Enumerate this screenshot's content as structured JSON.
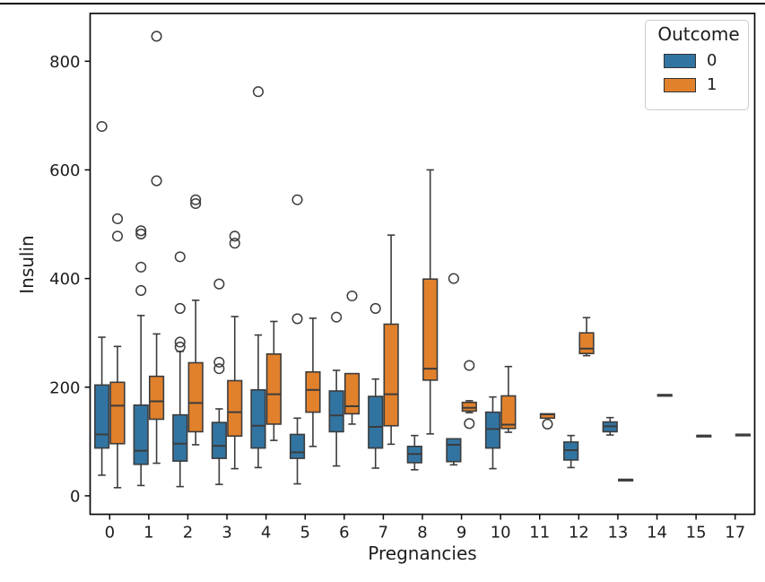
{
  "window": {
    "top_border_color": "#000000"
  },
  "chart_data": {
    "type": "grouped_boxplot",
    "title": "",
    "xlabel": "Pregnancies",
    "ylabel": "Insulin",
    "categories": [
      "0",
      "1",
      "2",
      "3",
      "4",
      "5",
      "6",
      "7",
      "8",
      "9",
      "10",
      "11",
      "12",
      "13",
      "14",
      "15",
      "17"
    ],
    "yticks": [
      0,
      200,
      400,
      600,
      800
    ],
    "ylim": [
      -34,
      888
    ],
    "grid": false,
    "background": "#ffffff",
    "axis_color": "#0a0a0a",
    "line_color": "#3c3c3c",
    "legend": {
      "title": "Outcome",
      "position": "upper right",
      "entries": [
        {
          "label": "0",
          "color": "#3274a1"
        },
        {
          "label": "1",
          "color": "#e1812c"
        }
      ]
    },
    "series": [
      {
        "name": "0",
        "color": "#3274a1",
        "boxes": [
          {
            "whislo": 38,
            "q1": 88,
            "med": 113,
            "q3": 204,
            "whishi": 292,
            "fliers": [
              680
            ]
          },
          {
            "whislo": 19,
            "q1": 58,
            "med": 83,
            "q3": 167,
            "whishi": 332,
            "fliers": [
              488,
              482,
              421,
              378
            ]
          },
          {
            "whislo": 17,
            "q1": 64,
            "med": 96,
            "q3": 149,
            "whishi": 266,
            "fliers": [
              440,
              345,
              283,
              274
            ]
          },
          {
            "whislo": 21,
            "q1": 69,
            "med": 92,
            "q3": 135,
            "whishi": 160,
            "fliers": [
              390,
              246,
              234
            ]
          },
          {
            "whislo": 52,
            "q1": 88,
            "med": 129,
            "q3": 195,
            "whishi": 296,
            "fliers": [
              744
            ]
          },
          {
            "whislo": 22,
            "q1": 69,
            "med": 80,
            "q3": 113,
            "whishi": 143,
            "fliers": [
              545,
              326
            ]
          },
          {
            "whislo": 55,
            "q1": 118,
            "med": 148,
            "q3": 193,
            "whishi": 231,
            "fliers": [
              329
            ]
          },
          {
            "whislo": 51,
            "q1": 88,
            "med": 127,
            "q3": 183,
            "whishi": 215,
            "fliers": [
              345
            ]
          },
          {
            "whislo": 48,
            "q1": 61,
            "med": 77,
            "q3": 91,
            "whishi": 111,
            "fliers": []
          },
          {
            "whislo": 57,
            "q1": 63,
            "med": 94,
            "q3": 105,
            "whishi": 105,
            "fliers": [
              400
            ]
          },
          {
            "whislo": 50,
            "q1": 88,
            "med": 123,
            "q3": 154,
            "whishi": 182,
            "fliers": []
          },
          null,
          {
            "whislo": 52,
            "q1": 66,
            "med": 84,
            "q3": 99,
            "whishi": 111,
            "fliers": []
          },
          {
            "whislo": 112,
            "q1": 118,
            "med": 128,
            "q3": 136,
            "whishi": 144,
            "fliers": []
          },
          null,
          null,
          null
        ]
      },
      {
        "name": "1",
        "color": "#e1812c",
        "boxes": [
          {
            "whislo": 15,
            "q1": 96,
            "med": 166,
            "q3": 209,
            "whishi": 275,
            "fliers": [
              510,
              478
            ]
          },
          {
            "whislo": 60,
            "q1": 141,
            "med": 174,
            "q3": 220,
            "whishi": 298,
            "fliers": [
              846,
              580
            ]
          },
          {
            "whislo": 94,
            "q1": 118,
            "med": 171,
            "q3": 245,
            "whishi": 360,
            "fliers": [
              545,
              538
            ]
          },
          {
            "whislo": 50,
            "q1": 110,
            "med": 154,
            "q3": 212,
            "whishi": 330,
            "fliers": [
              478,
              465
            ]
          },
          {
            "whislo": 102,
            "q1": 132,
            "med": 187,
            "q3": 261,
            "whishi": 321,
            "fliers": []
          },
          {
            "whislo": 91,
            "q1": 154,
            "med": 195,
            "q3": 228,
            "whishi": 327,
            "fliers": []
          },
          {
            "whislo": 132,
            "q1": 151,
            "med": 165,
            "q3": 225,
            "whishi": 225,
            "fliers": [
              368
            ]
          },
          {
            "whislo": 95,
            "q1": 129,
            "med": 187,
            "q3": 316,
            "whishi": 480,
            "fliers": []
          },
          {
            "whislo": 114,
            "q1": 213,
            "med": 234,
            "q3": 399,
            "whishi": 600,
            "fliers": []
          },
          {
            "whislo": 153,
            "q1": 156,
            "med": 162,
            "q3": 172,
            "whishi": 175,
            "fliers": [
              240,
              133
            ]
          },
          {
            "whislo": 117,
            "q1": 124,
            "med": 131,
            "q3": 184,
            "whishi": 238,
            "fliers": []
          },
          {
            "whislo": 143,
            "q1": 143,
            "med": 150,
            "q3": 151,
            "whishi": 151,
            "fliers": [
              132
            ]
          },
          {
            "whislo": 258,
            "q1": 262,
            "med": 271,
            "q3": 300,
            "whishi": 328,
            "fliers": []
          },
          {
            "whislo": 30,
            "q1": 30,
            "med": 30,
            "q3": 30,
            "whishi": 30,
            "fliers": []
          },
          {
            "whislo": 186,
            "q1": 186,
            "med": 186,
            "q3": 186,
            "whishi": 186,
            "fliers": []
          },
          {
            "whislo": 111,
            "q1": 111,
            "med": 111,
            "q3": 111,
            "whishi": 111,
            "fliers": []
          },
          {
            "whislo": 113,
            "q1": 113,
            "med": 113,
            "q3": 113,
            "whishi": 113,
            "fliers": []
          }
        ]
      }
    ]
  }
}
